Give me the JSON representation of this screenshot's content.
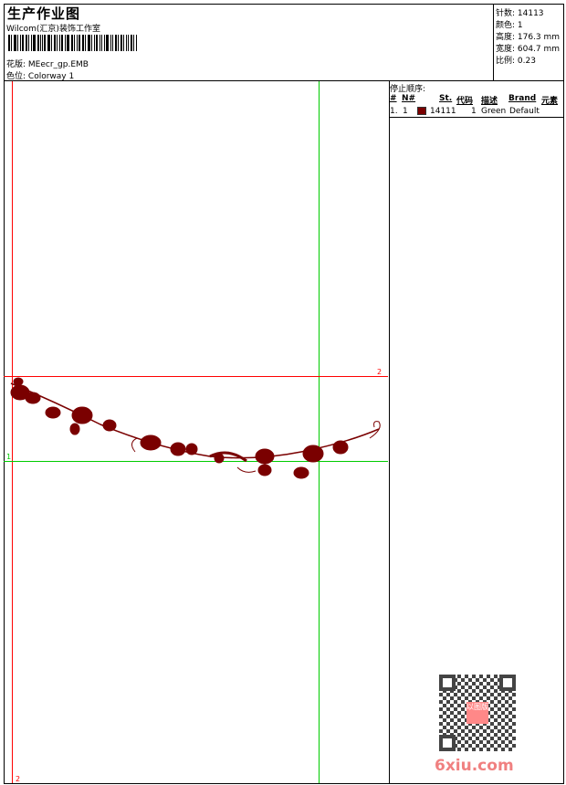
{
  "header": {
    "title": "生产作业图",
    "company": "Wilcom(汇京)装饰工作室",
    "design_label": "花版:",
    "design_value": "MEecr_gp.EMB",
    "colorway_label": "色位:",
    "colorway_value": "Colorway 1"
  },
  "info": {
    "stitches": "针数: 14113",
    "colors": "颜色: 1",
    "height": "高度: 176.3 mm",
    "width": "宽度: 604.7 mm",
    "scale": "比例: 0.23"
  },
  "stop_sequence": {
    "title": "停止顺序:",
    "columns": [
      "#",
      "N#",
      "St.",
      "代码",
      "描述",
      "Brand",
      "元素"
    ],
    "rows": [
      {
        "index": "1.",
        "needle": "1",
        "color": "#7a0000",
        "stitches": "14111",
        "code": "1",
        "description": "Green",
        "brand": "Default",
        "element": ""
      }
    ]
  },
  "guides": {
    "h_red_label": "2",
    "h_green_label": "1",
    "v_red_label": "2",
    "red": "#ff0000",
    "green": "#00cc00"
  },
  "design_color": "#7a0000",
  "watermark": {
    "qr_stamp": "以图版",
    "site": "6xiu.com"
  }
}
